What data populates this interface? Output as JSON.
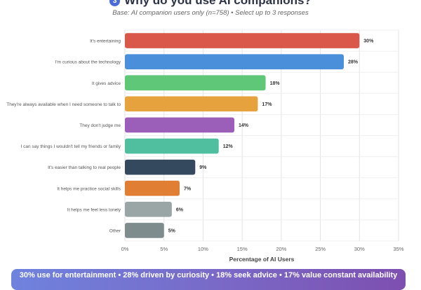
{
  "header": {
    "badge": "3",
    "title": "Why do you use AI companions?",
    "subtitle": "Base: AI companion users only (n=758) • Select up to 3 responses"
  },
  "footer": {
    "summary": "30% use for entertainment • 28% driven by curiosity • 18% seek advice • 17% value constant availability"
  },
  "chart_data": {
    "type": "bar",
    "orientation": "horizontal",
    "title": "Why do you use AI companions?",
    "xlabel": "Percentage of AI Users",
    "ylabel": "",
    "xlim": [
      0,
      35
    ],
    "xticks": [
      "0%",
      "5%",
      "10%",
      "15%",
      "20%",
      "25%",
      "30%",
      "35%"
    ],
    "grid": true,
    "categories": [
      "It's entertaining",
      "I'm curious about the technology",
      "It gives advice",
      "They're always available when I need someone to talk to",
      "They don't judge me",
      "I can say things I wouldn't tell my friends or family",
      "It's easier than talking to real people",
      "It helps me practice social skills",
      "It helps me feel less lonely",
      "Other"
    ],
    "values": [
      30,
      28,
      18,
      17,
      14,
      12,
      9,
      7,
      6,
      5
    ],
    "value_labels": [
      "30%",
      "28%",
      "18%",
      "17%",
      "14%",
      "12%",
      "9%",
      "7%",
      "6%",
      "5%"
    ],
    "colors": [
      "#d9584a",
      "#4a8fd9",
      "#5fc878",
      "#e6a23c",
      "#9b5fba",
      "#4fbf9f",
      "#34495e",
      "#e07f34",
      "#9aa5a6",
      "#7f8c8d"
    ]
  }
}
